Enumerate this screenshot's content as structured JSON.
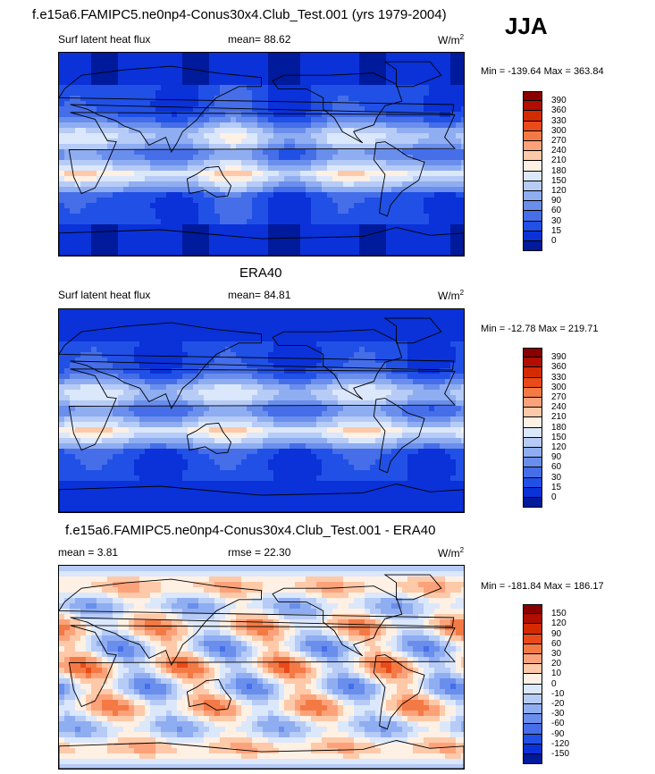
{
  "title": "f.e15a6.FAMIPC5.ne0np4-Conus30x4.Club_Test.001 (yrs 1979-2004)",
  "season": "JJA",
  "panels": [
    {
      "heading": "",
      "var_label": "Surf latent heat flux",
      "stat1": "mean=  88.62",
      "stat2": "",
      "units": "W/m",
      "units_sup": "2",
      "minmax": "Min = -139.64 Max = 363.84",
      "colorbar": {
        "ticks": [
          "390",
          "360",
          "330",
          "300",
          "270",
          "240",
          "210",
          "180",
          "150",
          "120",
          "90",
          "60",
          "30",
          "15",
          "0"
        ],
        "colors": [
          "#8a0000",
          "#b00e00",
          "#d42a00",
          "#ea4a1a",
          "#f47a45",
          "#fca27a",
          "#fdc9a8",
          "#fff0e4",
          "#dbe7fb",
          "#b6cbf6",
          "#8fadf1",
          "#6a8eec",
          "#456ee8",
          "#2150e6",
          "#0a32d8",
          "#001a9c"
        ]
      }
    },
    {
      "heading": "ERA40",
      "var_label": "Surf latent heat flux",
      "stat1": "mean=  84.81",
      "stat2": "",
      "units": "W/m",
      "units_sup": "2",
      "minmax": "Min = -12.78 Max = 219.71",
      "colorbar": {
        "ticks": [
          "390",
          "360",
          "330",
          "300",
          "270",
          "240",
          "210",
          "180",
          "150",
          "120",
          "90",
          "60",
          "30",
          "15",
          "0"
        ],
        "colors": [
          "#8a0000",
          "#b00e00",
          "#d42a00",
          "#ea4a1a",
          "#f47a45",
          "#fca27a",
          "#fdc9a8",
          "#fff0e4",
          "#dbe7fb",
          "#b6cbf6",
          "#8fadf1",
          "#6a8eec",
          "#456ee8",
          "#2150e6",
          "#0a32d8",
          "#001a9c"
        ]
      }
    },
    {
      "heading": "f.e15a6.FAMIPC5.ne0np4-Conus30x4.Club_Test.001 - ERA40",
      "var_label": "",
      "stat1": "mean =   3.81",
      "stat2": "rmse =  22.30",
      "units": "W/m",
      "units_sup": "2",
      "minmax": "Min = -181.84 Max = 186.17",
      "colorbar": {
        "ticks": [
          "150",
          "120",
          "90",
          "60",
          "30",
          "20",
          "10",
          "0",
          "-10",
          "-20",
          "-30",
          "-60",
          "-90",
          "-120",
          "-150"
        ],
        "colors": [
          "#8a0000",
          "#b00e00",
          "#d42a00",
          "#ea4a1a",
          "#f47a45",
          "#fca27a",
          "#fdc9a8",
          "#fff0e4",
          "#dbe7fb",
          "#b6cbf6",
          "#8fadf1",
          "#6a8eec",
          "#456ee8",
          "#2150e6",
          "#0a32d8",
          "#001a9c"
        ]
      }
    }
  ],
  "chart_data": [
    {
      "type": "heatmap",
      "title": "f.e15a6.FAMIPC5.ne0np4-Conus30x4.Club_Test.001 (yrs 1979-2004)",
      "variable": "Surf latent heat flux",
      "units": "W/m2",
      "mean": 88.62,
      "min": -139.64,
      "max": 363.84,
      "levels": [
        0,
        15,
        30,
        60,
        90,
        120,
        150,
        180,
        210,
        240,
        270,
        300,
        330,
        360,
        390
      ]
    },
    {
      "type": "heatmap",
      "title": "ERA40",
      "variable": "Surf latent heat flux",
      "units": "W/m2",
      "mean": 84.81,
      "min": -12.78,
      "max": 219.71,
      "levels": [
        0,
        15,
        30,
        60,
        90,
        120,
        150,
        180,
        210,
        240,
        270,
        300,
        330,
        360,
        390
      ]
    },
    {
      "type": "heatmap",
      "title": "f.e15a6.FAMIPC5.ne0np4-Conus30x4.Club_Test.001 - ERA40",
      "units": "W/m2",
      "mean": 3.81,
      "rmse": 22.3,
      "min": -181.84,
      "max": 186.17,
      "levels": [
        -150,
        -120,
        -90,
        -60,
        -30,
        -20,
        -10,
        0,
        10,
        20,
        30,
        60,
        90,
        120,
        150
      ]
    }
  ]
}
